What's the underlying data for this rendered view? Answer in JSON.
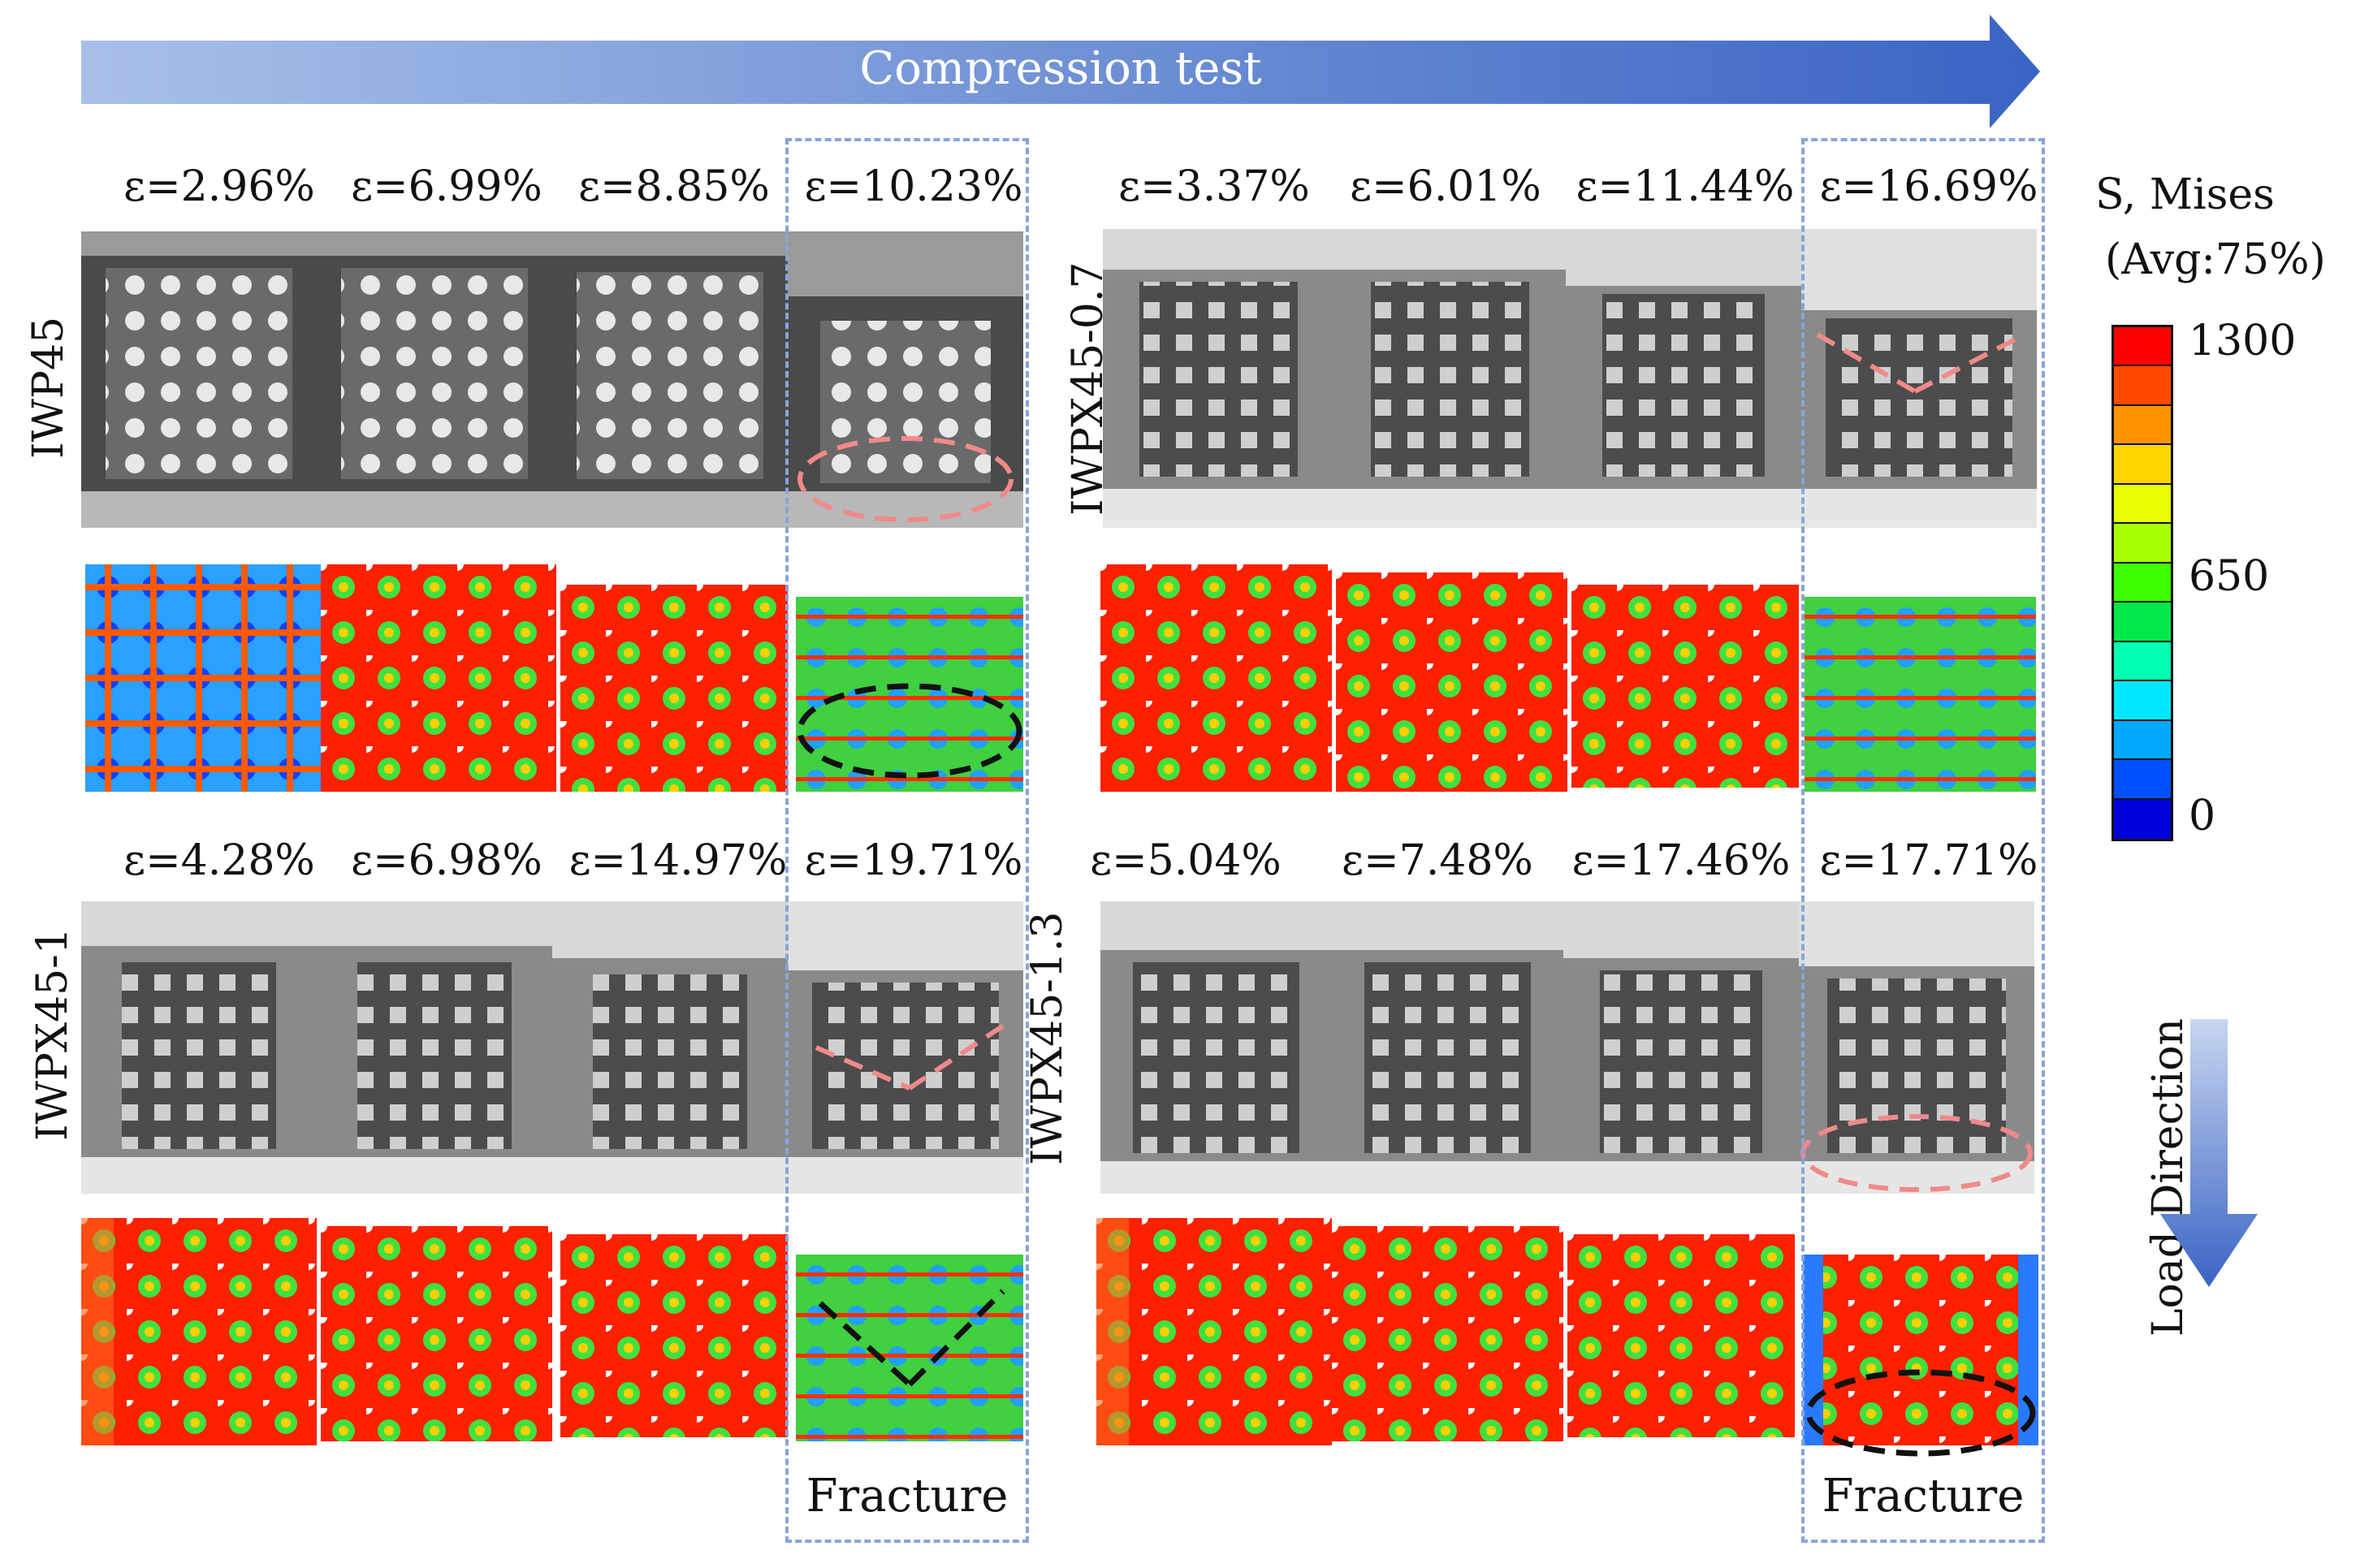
{
  "header": {
    "arrow_label": "Compression test"
  },
  "specimens": [
    {
      "id": "iwp45",
      "label": "IWP45",
      "strains": [
        "ε=2.96%",
        "ε=6.99%",
        "ε=8.85%",
        "ε=10.23%"
      ]
    },
    {
      "id": "iwpx45-07",
      "label": "IWPX45-0.7",
      "strains": [
        "ε=3.37%",
        "ε=6.01%",
        "ε=11.44%",
        "ε=16.69%"
      ]
    },
    {
      "id": "iwpx45-1",
      "label": "IWPX45-1",
      "strains": [
        "ε=4.28%",
        "ε=6.98%",
        "ε=14.97%",
        "ε=19.71%"
      ]
    },
    {
      "id": "iwpx45-13",
      "label": "IWPX45-1.3",
      "strains": [
        "ε=5.04%",
        "ε=7.48%",
        "ε=17.46%",
        "ε=17.71%"
      ]
    }
  ],
  "fracture_label": "Fracture",
  "legend": {
    "title_line1": "S, Mises",
    "title_line2": "(Avg:75%)",
    "max": "1300",
    "mid": "650",
    "min": "0",
    "colors": [
      "#ff0000",
      "#ff4a00",
      "#ff9400",
      "#ffd400",
      "#e8ff00",
      "#a8ff00",
      "#3cff00",
      "#00e84a",
      "#00ffb0",
      "#00e8ff",
      "#00a8ff",
      "#0050ff",
      "#0000d8"
    ]
  },
  "load_direction": {
    "label": "Load Direction"
  }
}
